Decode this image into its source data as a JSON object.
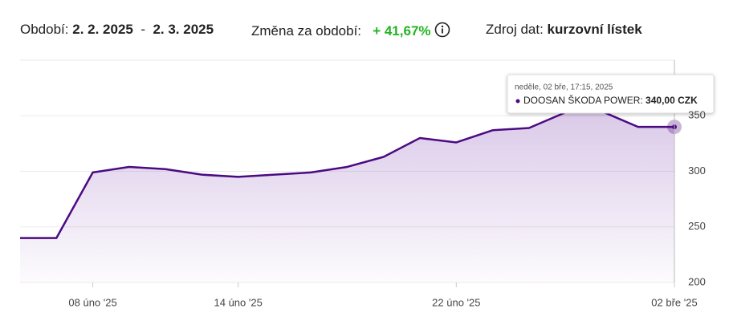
{
  "header": {
    "period_label": "Období:",
    "period_from": "2. 2. 2025",
    "dash": "-",
    "period_to": "2. 3. 2025",
    "change_label": "Změna za období:",
    "change_value": "+ 41,67%",
    "source_label": "Zdroj dat:",
    "source_value": "kurzovní lístek"
  },
  "chart_data": {
    "type": "area",
    "categories": [
      null,
      null,
      "08 úno '25",
      null,
      null,
      null,
      "14 úno '25",
      null,
      null,
      null,
      null,
      null,
      "22 úno '25",
      null,
      null,
      null,
      null,
      null,
      "02 bře '25"
    ],
    "series": [
      {
        "name": "DOOSAN ŠKODA POWER",
        "color": "#4b0a82",
        "values": [
          240,
          240,
          299,
          304,
          302,
          297,
          295,
          297,
          299,
          304,
          313,
          330,
          326,
          337,
          339,
          353,
          354,
          340,
          340
        ]
      }
    ],
    "ylim": [
      200,
      400
    ],
    "yticks": [
      200,
      250,
      300,
      350
    ],
    "grid": true,
    "tooltip": {
      "title": "neděle, 02 bře, 17:15, 2025",
      "label": "DOOSAN ŠKODA POWER:",
      "value_label": "340,00 CZK"
    }
  }
}
